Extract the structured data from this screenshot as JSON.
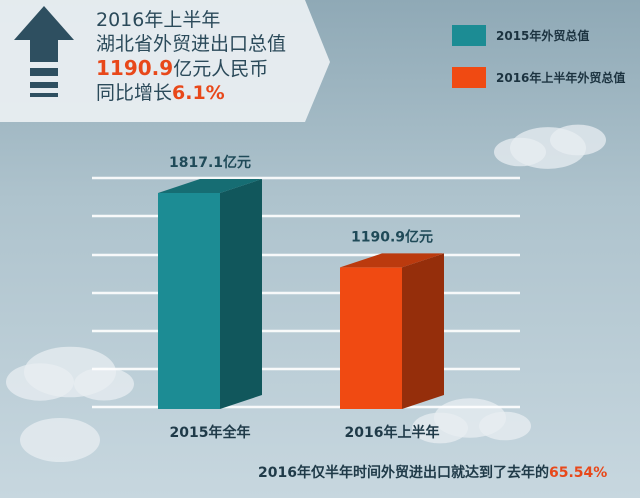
{
  "colors": {
    "series_2015": "#1c8c94",
    "series_2016h1": "#f04a12",
    "highlight": "#e8481a",
    "header_text": "#2b4a5a"
  },
  "banner": {
    "arrow_icon": "up-arrow-icon",
    "line1": "2016年上半年",
    "line2": "湖北省外贸进出口总值",
    "line3_value": "1190.9",
    "line3_unit": "亿元人民币",
    "line4_prefix": "同比增长",
    "line4_value": "6.1%"
  },
  "legend": [
    {
      "label": "2015年外贸总值",
      "color": "#1c8c94"
    },
    {
      "label": "2016年上半年外贸总值",
      "color": "#f04a12"
    }
  ],
  "chart_data": {
    "type": "bar",
    "categories": [
      "2015年全年",
      "2016年上半年"
    ],
    "values": [
      1817.1,
      1190.9
    ],
    "data_labels": [
      "1817.1亿元",
      "1190.9亿元"
    ],
    "unit": "亿元",
    "colors": [
      "#1c8c94",
      "#f04a12"
    ],
    "grid": true,
    "legend_position": "top-right",
    "ylim": [
      0,
      2000
    ]
  },
  "footer": {
    "prefix": "2016年仅半年时间外贸进出口就达到了去年的",
    "pct": "65.54%"
  }
}
